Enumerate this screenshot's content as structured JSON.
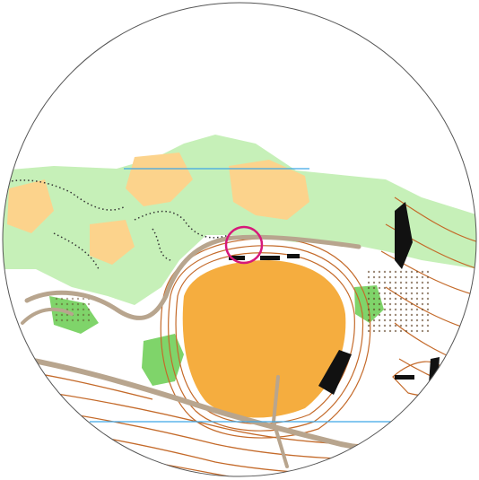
{
  "map": {
    "type": "orienteering-map",
    "view": "circular-zoom",
    "control_marker": {
      "shape": "circle",
      "color": "#d6197a"
    },
    "colors": {
      "open_land": "#f5ad3f",
      "rough_open": "#fcd38c",
      "forest_green": "#c6f0b8",
      "vegetation_green": "#7fd46a",
      "contour_brown": "#c46a2a",
      "road": "#b8a58e",
      "water_line": "#3ea6e6",
      "cliff_black": "#111111",
      "control_magenta": "#d6197a",
      "boundary": "#555555"
    }
  }
}
